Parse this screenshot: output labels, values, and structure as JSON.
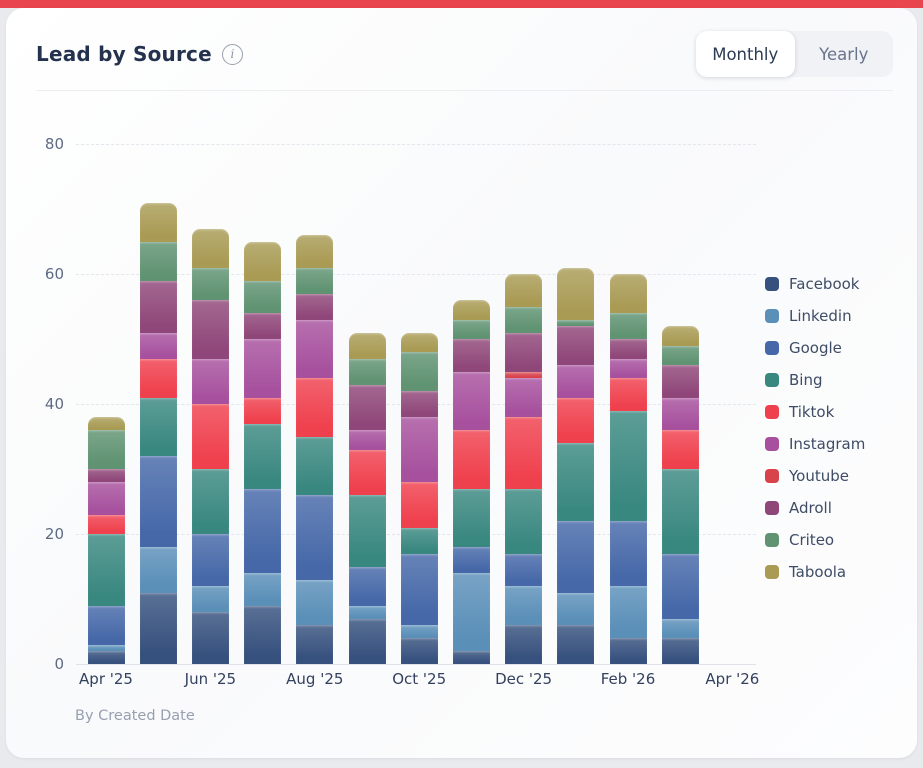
{
  "header": {
    "title": "Lead by Source",
    "info_icon": "i",
    "toggle": {
      "monthly_label": "Monthly",
      "yearly_label": "Yearly",
      "active": "Monthly"
    }
  },
  "footer": {
    "note": "By Created Date"
  },
  "colors": {
    "accent_bar": "#E8454E",
    "card_bg": "#FDFDFE",
    "page_bg": "#E9EAED",
    "grid": "#E3E6EC",
    "y_tick_text": "#5E6A84",
    "x_tick_text": "#33415F",
    "legend_text": "#3E4C66"
  },
  "chart_data": {
    "type": "bar",
    "stacked": true,
    "title": "Lead by Source",
    "categories": [
      "Apr '25",
      "May '25",
      "Jun '25",
      "Jul '25",
      "Aug '25",
      "Sep '25",
      "Oct '25",
      "Nov '25",
      "Dec '25",
      "Jan '26",
      "Feb '26",
      "Mar '26"
    ],
    "x_tick_labels": [
      "Apr '25",
      "Jun '25",
      "Aug '25",
      "Oct '25",
      "Dec '25",
      "Feb '26",
      "Apr '26"
    ],
    "y_ticks": [
      0,
      20,
      40,
      60,
      80
    ],
    "ylim": [
      0,
      80
    ],
    "grid": "horizontal-dashed",
    "legend_position": "right",
    "series": [
      {
        "name": "Facebook",
        "color": "#36517E",
        "values": [
          2,
          11,
          8,
          9,
          6,
          7,
          4,
          2,
          6,
          6,
          4,
          4
        ]
      },
      {
        "name": "Linkedin",
        "color": "#5A8FB8",
        "values": [
          1,
          7,
          4,
          5,
          7,
          2,
          2,
          12,
          6,
          5,
          8,
          3
        ]
      },
      {
        "name": "Google",
        "color": "#4668A8",
        "values": [
          6,
          14,
          8,
          13,
          13,
          6,
          11,
          4,
          5,
          11,
          10,
          10
        ]
      },
      {
        "name": "Bing",
        "color": "#398880",
        "values": [
          11,
          9,
          10,
          10,
          9,
          11,
          4,
          9,
          10,
          12,
          17,
          13
        ]
      },
      {
        "name": "Tiktok",
        "color": "#EF404D",
        "values": [
          3,
          6,
          10,
          4,
          9,
          7,
          7,
          9,
          11,
          7,
          5,
          6
        ]
      },
      {
        "name": "Instagram",
        "color": "#A7519E",
        "values": [
          5,
          4,
          7,
          9,
          9,
          3,
          10,
          9,
          6,
          5,
          3,
          5
        ]
      },
      {
        "name": "Youtube",
        "color": "#D8424B",
        "values": [
          0,
          0,
          0,
          0,
          0,
          0,
          0,
          0,
          1,
          0,
          0,
          0
        ]
      },
      {
        "name": "Adroll",
        "color": "#8F4779",
        "values": [
          2,
          8,
          9,
          4,
          4,
          7,
          4,
          5,
          6,
          6,
          3,
          5
        ]
      },
      {
        "name": "Criteo",
        "color": "#5F9371",
        "values": [
          6,
          6,
          5,
          5,
          4,
          4,
          6,
          3,
          4,
          1,
          4,
          3
        ]
      },
      {
        "name": "Taboola",
        "color": "#A99B54",
        "values": [
          2,
          6,
          6,
          6,
          5,
          4,
          3,
          3,
          5,
          8,
          6,
          3
        ]
      }
    ]
  }
}
